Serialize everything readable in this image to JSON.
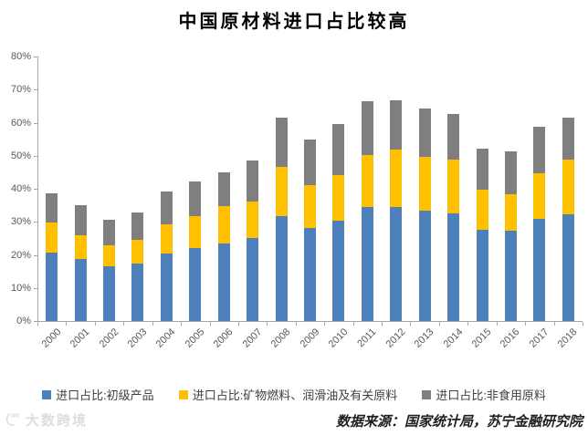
{
  "title": "中国原材料进口占比较高",
  "source_note": "数据来源：国家统计局，苏宁金融研究院",
  "watermark": "大数跨境",
  "colors": {
    "primary_products_blue": "#4E80BC",
    "mineral_fuels_yellow": "#FFC000",
    "nonedible_raw_gray": "#7F7F7F",
    "axis_line": "#A6A6A6",
    "axis_text": "#595959",
    "legend_text": "#404040",
    "watermark_gray": "#DEDEDE"
  },
  "chart_data": {
    "type": "bar",
    "stacked": true,
    "title": "中国原材料进口占比较高",
    "xlabel": "",
    "ylabel": "",
    "ylim": [
      0,
      80
    ],
    "ytick_labels": [
      "0%",
      "10%",
      "20%",
      "30%",
      "40%",
      "50%",
      "60%",
      "70%",
      "80%"
    ],
    "grid": false,
    "legend_position": "bottom",
    "categories": [
      "2000",
      "2001",
      "2002",
      "2003",
      "2004",
      "2005",
      "2006",
      "2007",
      "2008",
      "2009",
      "2010",
      "2011",
      "2012",
      "2013",
      "2014",
      "2015",
      "2016",
      "2017",
      "2018"
    ],
    "series": [
      {
        "name": "进口占比:初级产品",
        "color": "#4E80BC",
        "values": [
          20.6,
          18.8,
          16.5,
          17.5,
          20.5,
          22.0,
          23.5,
          25.2,
          31.6,
          28.2,
          30.4,
          34.4,
          34.6,
          33.3,
          32.6,
          27.6,
          27.2,
          31.0,
          32.2
        ]
      },
      {
        "name": "进口占比:矿物燃料、润滑油及有关原料",
        "color": "#FFC000",
        "values": [
          9.3,
          7.1,
          6.4,
          7.1,
          8.8,
          9.6,
          11.3,
          11.0,
          15.1,
          12.8,
          13.8,
          15.9,
          17.2,
          16.4,
          16.3,
          12.0,
          11.2,
          13.8,
          16.5
        ]
      },
      {
        "name": "进口占比:非食用原料",
        "color": "#7F7F7F",
        "values": [
          8.8,
          9.0,
          7.6,
          8.3,
          10.0,
          10.7,
          10.3,
          12.3,
          14.7,
          14.0,
          15.5,
          16.3,
          15.0,
          14.6,
          13.7,
          12.6,
          12.9,
          13.9,
          12.7
        ]
      }
    ]
  }
}
